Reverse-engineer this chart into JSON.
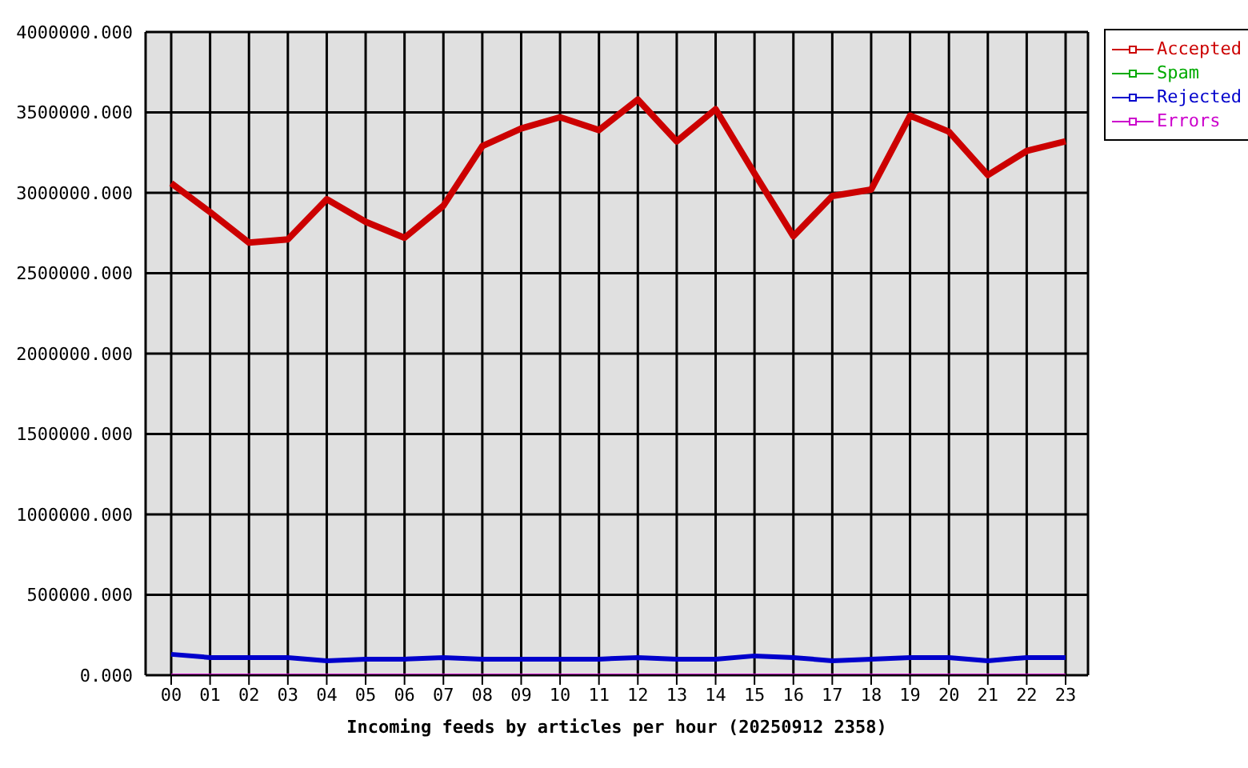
{
  "chart_data": {
    "type": "line",
    "xlabel": "Incoming feeds by articles per hour (20250912 2358)",
    "categories": [
      "00",
      "01",
      "02",
      "03",
      "04",
      "05",
      "06",
      "07",
      "08",
      "09",
      "10",
      "11",
      "12",
      "13",
      "14",
      "15",
      "16",
      "17",
      "18",
      "19",
      "20",
      "21",
      "22",
      "23"
    ],
    "series": [
      {
        "name": "Accepted",
        "color": "#cc0000",
        "values": [
          3060000,
          2880000,
          2690000,
          2710000,
          2960000,
          2820000,
          2720000,
          2920000,
          3290000,
          3400000,
          3470000,
          3390000,
          3580000,
          3320000,
          3520000,
          3120000,
          2730000,
          2980000,
          3020000,
          3480000,
          3380000,
          3110000,
          3260000,
          3320000
        ]
      },
      {
        "name": "Spam",
        "color": "#00aa00",
        "values": [
          null,
          null,
          null,
          null,
          null,
          null,
          null,
          null,
          null,
          null,
          null,
          null,
          null,
          null,
          null,
          null,
          null,
          null,
          null,
          null,
          null,
          null,
          null,
          null
        ]
      },
      {
        "name": "Rejected",
        "color": "#0000cc",
        "values": [
          130000,
          110000,
          110000,
          110000,
          90000,
          100000,
          100000,
          110000,
          100000,
          100000,
          100000,
          100000,
          110000,
          100000,
          100000,
          120000,
          110000,
          90000,
          100000,
          110000,
          110000,
          90000,
          110000,
          110000
        ]
      },
      {
        "name": "Errors",
        "color": "#cc00cc",
        "values": [
          0,
          0,
          0,
          0,
          0,
          0,
          0,
          0,
          0,
          0,
          0,
          0,
          0,
          0,
          0,
          0,
          0,
          0,
          0,
          0,
          0,
          0,
          0,
          0
        ]
      }
    ],
    "ylim": [
      0,
      4000000
    ],
    "yticks": [
      {
        "value": 0,
        "label": "0.000"
      },
      {
        "value": 500000,
        "label": "500000.000"
      },
      {
        "value": 1000000,
        "label": "1000000.000"
      },
      {
        "value": 1500000,
        "label": "1500000.000"
      },
      {
        "value": 2000000,
        "label": "2000000.000"
      },
      {
        "value": 2500000,
        "label": "2500000.000"
      },
      {
        "value": 3000000,
        "label": "3000000.000"
      },
      {
        "value": 3500000,
        "label": "3500000.000"
      },
      {
        "value": 4000000,
        "label": "4000000.000"
      }
    ],
    "grid": true,
    "legend": "top right",
    "marker": "none",
    "line_style": "solid"
  }
}
